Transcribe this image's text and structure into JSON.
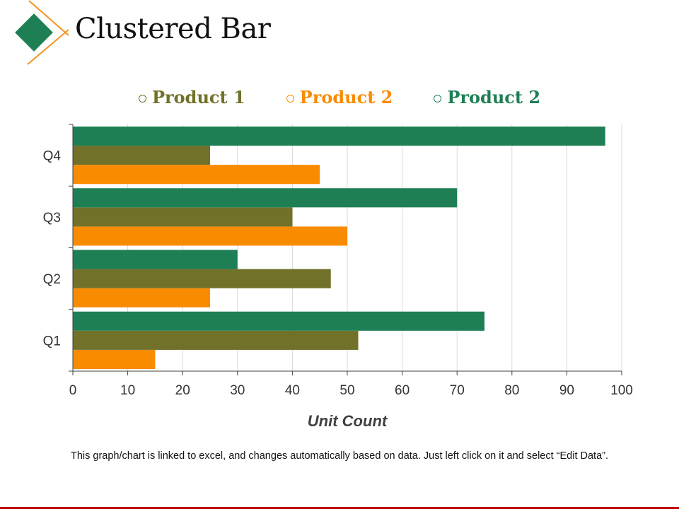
{
  "page": {
    "title": "Clustered Bar",
    "footnote": "This graph/chart is linked to excel, and changes automatically based on data. Just left click on it and select “Edit Data”."
  },
  "legend": [
    {
      "label": "Product 1",
      "color": "#71712A"
    },
    {
      "label": "Product 2",
      "color": "#F98B00"
    },
    {
      "label": "Product 2",
      "color": "#1E7F55"
    }
  ],
  "colors": {
    "accent_green": "#1E7F55",
    "accent_orange": "#F39323",
    "bottom_rule": "#C00000"
  },
  "chart_data": {
    "type": "bar",
    "orientation": "horizontal",
    "categories": [
      "Q1",
      "Q2",
      "Q3",
      "Q4"
    ],
    "series": [
      {
        "name": "Product 2",
        "color": "#F98B00",
        "values": [
          15,
          25,
          50,
          45
        ]
      },
      {
        "name": "Product 1",
        "color": "#71712A",
        "values": [
          52,
          47,
          40,
          25
        ]
      },
      {
        "name": "Product 2",
        "color": "#1E7F55",
        "values": [
          75,
          30,
          70,
          97
        ]
      }
    ],
    "xlabel": "Unit Count",
    "xlim": [
      0,
      100
    ],
    "xticks": [
      0,
      10,
      20,
      30,
      40,
      50,
      60,
      70,
      80,
      90,
      100
    ],
    "grid": "vertical",
    "legend_position": "top"
  }
}
